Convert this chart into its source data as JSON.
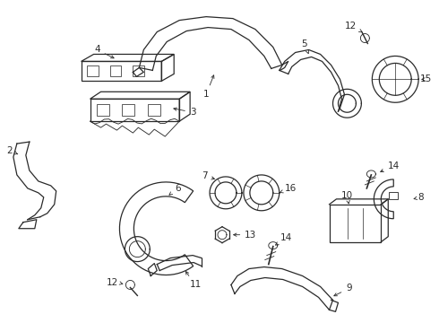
{
  "background_color": "#ffffff",
  "line_color": "#2a2a2a",
  "fig_width": 4.9,
  "fig_height": 3.6,
  "dpi": 100,
  "label_fontsize": 7.5,
  "lw": 0.9
}
